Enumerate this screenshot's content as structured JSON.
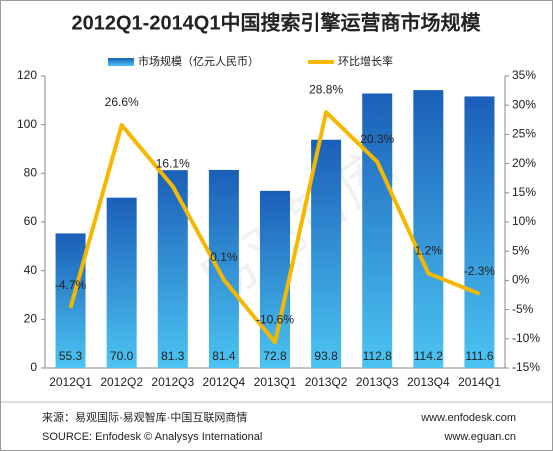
{
  "chart_data": {
    "type": "bar-line",
    "title": "2012Q1-2014Q1中国搜索引擎运营商市场规模",
    "categories": [
      "2012Q1",
      "2012Q2",
      "2012Q3",
      "2012Q4",
      "2013Q1",
      "2013Q2",
      "2013Q3",
      "2013Q4",
      "2014Q1"
    ],
    "series": [
      {
        "name": "市场规模（亿元人民币）",
        "type": "bar",
        "color": "#2a7fd4",
        "values": [
          55.3,
          70.0,
          81.3,
          81.4,
          72.8,
          93.8,
          112.8,
          114.2,
          111.6
        ],
        "value_labels": [
          "55.3",
          "70.0",
          "81.3",
          "81.4",
          "72.8",
          "93.8",
          "112.8",
          "114.2",
          "111.6"
        ]
      },
      {
        "name": "环比增长率",
        "type": "line",
        "axis": "y2",
        "color": "#f5b800",
        "values": [
          -4.7,
          26.6,
          16.1,
          0.1,
          -10.6,
          28.8,
          20.3,
          1.2,
          -2.3
        ],
        "value_labels": [
          "-4.7%",
          "26.6%",
          "16.1%",
          "0.1%",
          "-10.6%",
          "28.8%",
          "20.3%",
          "1.2%",
          "-2.3%"
        ]
      }
    ],
    "ylim": [
      0,
      120
    ],
    "yticks": [
      0,
      20,
      40,
      60,
      80,
      100,
      120
    ],
    "y2lim": [
      -15,
      35
    ],
    "y2ticks": [
      {
        "value": -15,
        "label": "-15%"
      },
      {
        "value": -10,
        "label": "-10%"
      },
      {
        "value": -5,
        "label": "-5%"
      },
      {
        "value": 0,
        "label": "0%"
      },
      {
        "value": 5,
        "label": "5%"
      },
      {
        "value": 10,
        "label": "10%"
      },
      {
        "value": 15,
        "label": "15%"
      },
      {
        "value": 20,
        "label": "20%"
      },
      {
        "value": 25,
        "label": "25%"
      },
      {
        "value": 30,
        "label": "30%"
      },
      {
        "value": 35,
        "label": "35%"
      }
    ],
    "grid": false,
    "watermark": "易观智库",
    "source_cn": "来源：易观国际·易观智库·中国互联网商情",
    "source_en": "SOURCE: Enfodesk © Analysys International",
    "url1": "www.enfodesk.com",
    "url2": "www.eguan.cn"
  }
}
